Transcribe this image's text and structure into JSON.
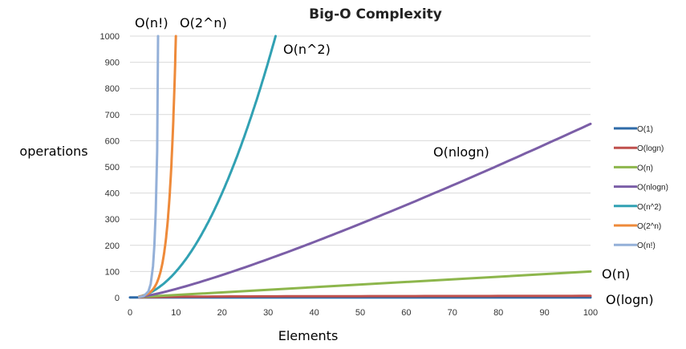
{
  "chart_data": {
    "type": "line",
    "title": "Big-O Complexity",
    "xlabel": "Elements",
    "ylabel": "operations",
    "xlim": [
      0,
      100
    ],
    "ylim": [
      0,
      1000
    ],
    "x_ticks": [
      "0",
      "10",
      "20",
      "30",
      "40",
      "50",
      "60",
      "70",
      "80",
      "90",
      "100"
    ],
    "y_ticks": [
      "0",
      "100",
      "200",
      "300",
      "400",
      "500",
      "600",
      "700",
      "800",
      "900",
      "1000"
    ],
    "grid": "horizontal",
    "legend_position": "right",
    "series": [
      {
        "name": "O(1)",
        "color": "#2e6aa8",
        "x": [
          0,
          100
        ],
        "y": [
          1,
          1
        ]
      },
      {
        "name": "O(logn)",
        "color": "#c0504d",
        "x": [
          2,
          10,
          30,
          50,
          100
        ],
        "y": [
          1,
          3.3,
          4.9,
          5.6,
          6.6
        ]
      },
      {
        "name": "O(n)",
        "color": "#8db64c",
        "x": [
          2,
          100
        ],
        "y": [
          2,
          100
        ]
      },
      {
        "name": "O(nlogn)",
        "color": "#7b5ea7",
        "x": [
          2,
          5,
          10,
          20,
          30,
          40,
          50,
          60,
          70,
          80,
          90,
          100
        ],
        "y": [
          2,
          12,
          33,
          86,
          147,
          213,
          282,
          354,
          429,
          506,
          584,
          664
        ]
      },
      {
        "name": "O(n^2)",
        "color": "#31a1b3",
        "x": [
          2,
          5,
          8,
          10,
          12,
          15,
          18,
          20,
          22,
          25,
          28,
          30,
          31.6
        ],
        "y": [
          4,
          25,
          64,
          100,
          144,
          225,
          324,
          400,
          484,
          625,
          784,
          900,
          1000
        ]
      },
      {
        "name": "O(2^n)",
        "color": "#ee8a3a",
        "x": [
          2,
          4,
          6,
          7,
          8,
          8.5,
          9,
          9.3,
          9.6,
          9.97
        ],
        "y": [
          4,
          16,
          64,
          128,
          256,
          362,
          512,
          630,
          776,
          1000
        ]
      },
      {
        "name": "O(n!)",
        "color": "#94b0d8",
        "x": [
          2,
          3,
          4,
          4.5,
          5,
          5.3,
          5.6,
          5.9,
          6.1
        ],
        "y": [
          2,
          6,
          24,
          52,
          120,
          200,
          330,
          560,
          1000
        ]
      }
    ],
    "annotations": [
      "O(n!)",
      "O(2^n)",
      "O(n^2)",
      "O(nlogn)",
      "O(n)",
      "O(logn)"
    ]
  }
}
